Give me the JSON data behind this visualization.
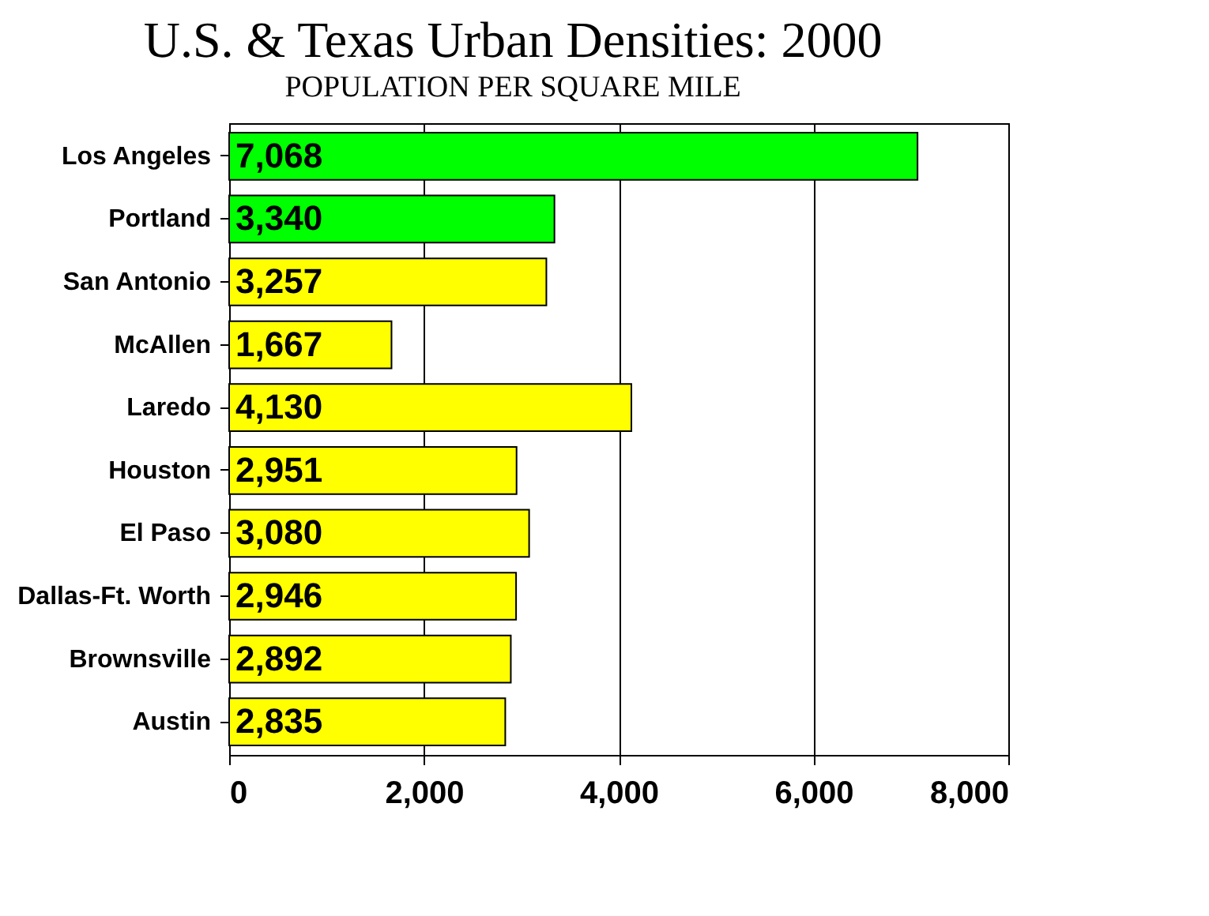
{
  "chart_data": {
    "type": "bar",
    "orientation": "horizontal",
    "title": "U.S. & Texas Urban Densities: 2000",
    "subtitle": "POPULATION PER SQUARE MILE",
    "categories": [
      "Los Angeles",
      "Portland",
      "San Antonio",
      "McAllen",
      "Laredo",
      "Houston",
      "El Paso",
      "Dallas-Ft. Worth",
      "Brownsville",
      "Austin"
    ],
    "values": [
      7068,
      3340,
      3257,
      1667,
      4130,
      2951,
      3080,
      2946,
      2892,
      2835
    ],
    "value_labels": [
      "7,068",
      "3,340",
      "3,257",
      "1,667",
      "4,130",
      "2,951",
      "3,080",
      "2,946",
      "2,892",
      "2,835"
    ],
    "colors": [
      "#00ff00",
      "#00ff00",
      "#ffff00",
      "#ffff00",
      "#ffff00",
      "#ffff00",
      "#ffff00",
      "#ffff00",
      "#ffff00",
      "#ffff00"
    ],
    "xlim": [
      0,
      8000
    ],
    "xticks": [
      0,
      {
        "value": 2000,
        "label": "2,000"
      },
      {
        "value": 4000,
        "label": "4,000"
      },
      {
        "value": 6000,
        "label": "6,000"
      },
      {
        "value": 8000,
        "label": "8,000"
      }
    ],
    "grid": "x",
    "legend": false
  }
}
